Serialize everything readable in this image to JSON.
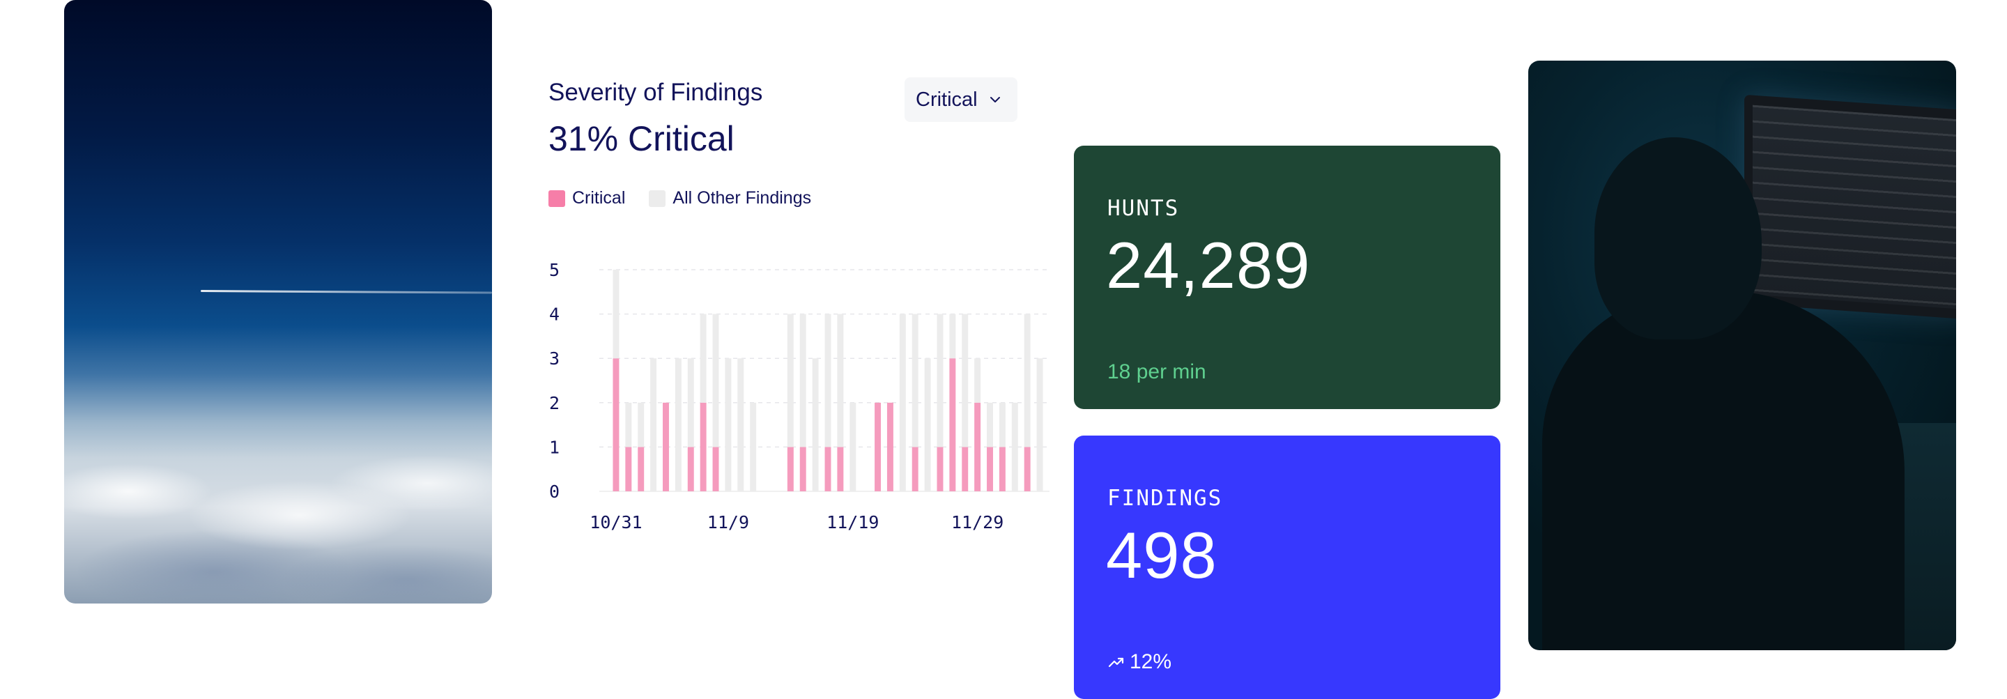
{
  "chart_header": {
    "title": "Severity of Findings",
    "headline": "31% Critical"
  },
  "dropdown": {
    "selected": "Critical"
  },
  "legend": {
    "critical": "Critical",
    "other": "All Other Findings"
  },
  "colors": {
    "critical": "#f59bbd",
    "other": "#ececec",
    "hunts_card": "#1e4634",
    "findings_card": "#3738fe",
    "positive": "#5fd08f"
  },
  "chart_data": {
    "type": "bar",
    "stacked": true,
    "x_tick_labels": [
      "10/31",
      "11/9",
      "11/19",
      "11/29"
    ],
    "y_ticks": [
      0,
      1,
      2,
      3,
      4,
      5
    ],
    "ylim": [
      0,
      5
    ],
    "grid": true,
    "legend_position": "top-left",
    "series": [
      {
        "name": "Critical",
        "values": [
          3,
          1,
          1,
          0,
          2,
          0,
          1,
          2,
          1,
          0,
          0,
          0,
          0,
          0,
          1,
          1,
          0,
          1,
          1,
          0,
          0,
          2,
          2,
          0,
          1,
          0,
          1,
          3,
          1,
          2,
          1,
          1,
          0,
          1,
          0
        ]
      },
      {
        "name": "All Other Findings",
        "values": [
          2,
          1,
          1,
          3,
          0,
          3,
          2,
          2,
          3,
          3,
          3,
          2,
          0,
          0,
          3,
          3,
          3,
          3,
          3,
          2,
          0,
          0,
          0,
          4,
          3,
          3,
          3,
          1,
          3,
          1,
          1,
          1,
          2,
          3,
          3
        ]
      }
    ]
  },
  "hunts": {
    "label": "HUNTS",
    "value": "24,289",
    "rate": "18 per min"
  },
  "findings": {
    "label": "FINDINGS",
    "value": "498",
    "trend_icon": "trend-up-icon",
    "change": "12%"
  }
}
